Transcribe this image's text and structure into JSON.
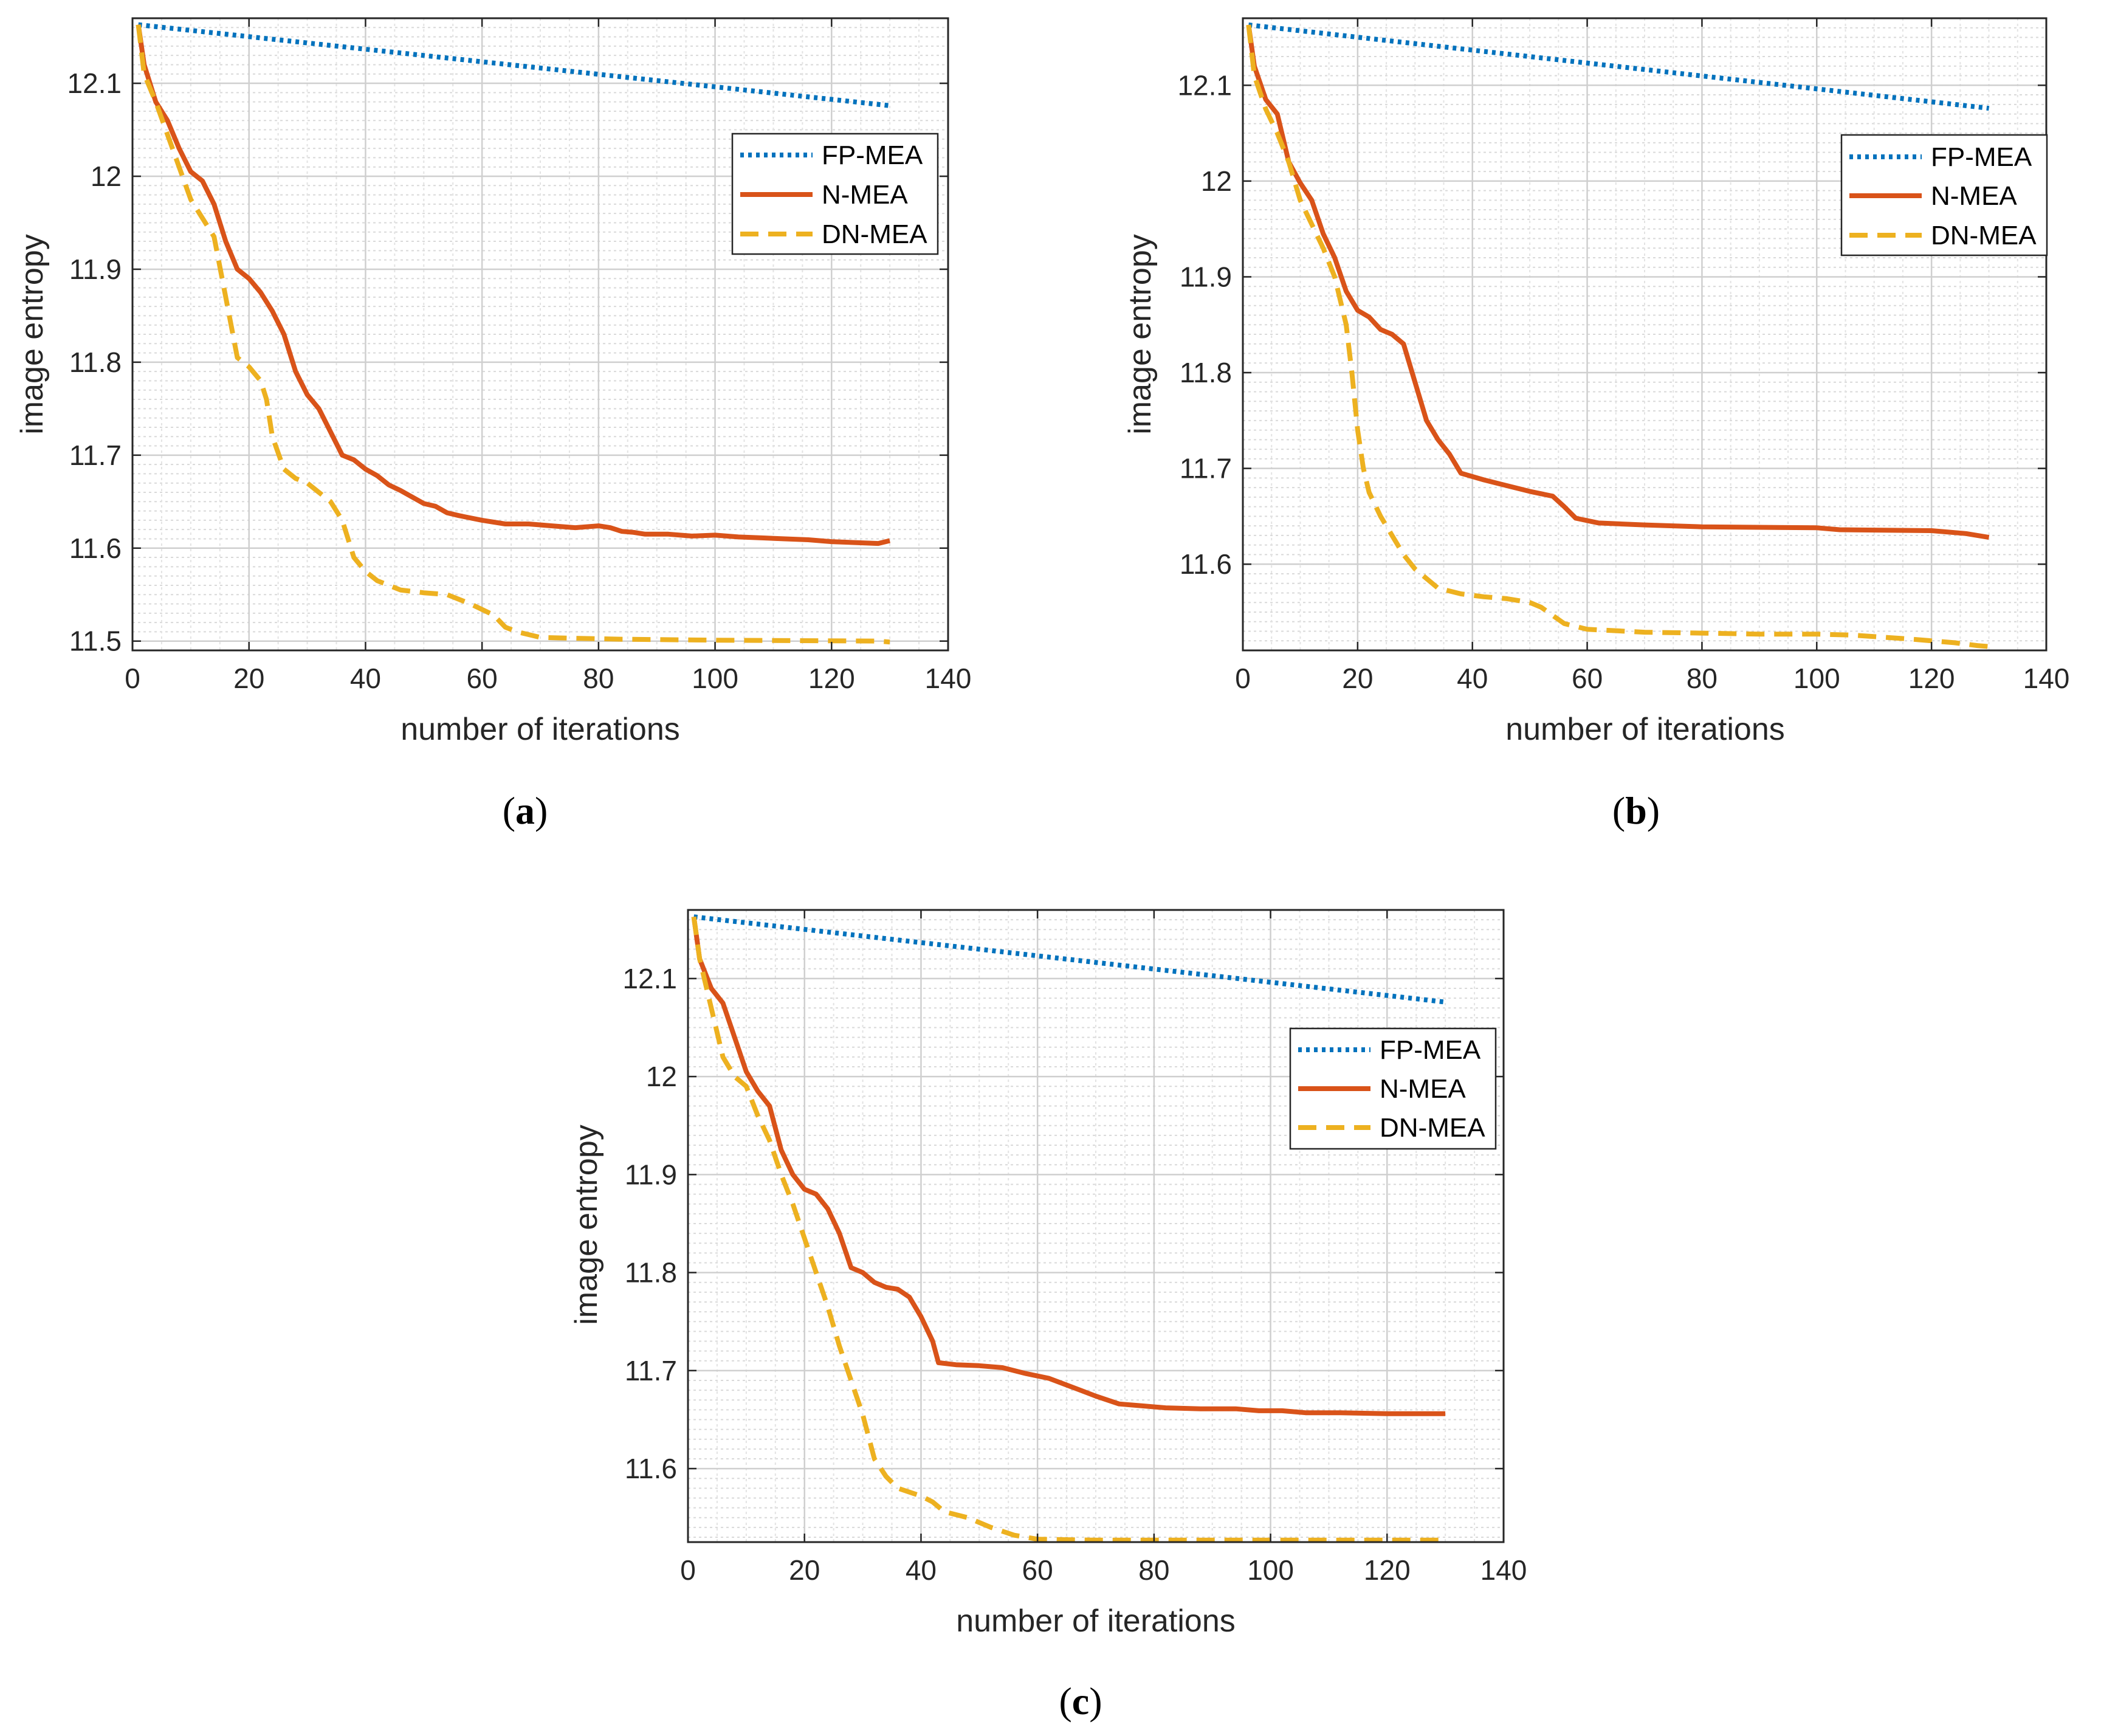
{
  "chart_data": [
    {
      "type": "line",
      "panel": "a",
      "caption_open": "(",
      "caption_letter": "a",
      "caption_close": ")",
      "xlabel": "number of iterations",
      "ylabel": "image entropy",
      "xlim": [
        0,
        140
      ],
      "ylim": [
        11.49,
        12.17
      ],
      "xticks": [
        0,
        20,
        40,
        60,
        80,
        100,
        120,
        140
      ],
      "yticks": [
        11.5,
        11.6,
        11.7,
        11.8,
        11.9,
        12,
        12.1
      ],
      "ytick_labels": [
        "11.5",
        "11.6",
        "11.7",
        "11.8",
        "11.9",
        "12",
        "12.1"
      ],
      "grid": true,
      "legend_position": "upper-right",
      "series": [
        {
          "name": "FP-MEA",
          "color": "#0072BD",
          "style": "dotted",
          "points": [
            [
              1,
              12.163
            ],
            [
              130,
              12.076
            ]
          ]
        },
        {
          "name": "N-MEA",
          "color": "#D95319",
          "style": "solid",
          "points": [
            [
              1,
              12.163
            ],
            [
              2,
              12.12
            ],
            [
              4,
              12.08
            ],
            [
              6,
              12.06
            ],
            [
              8,
              12.03
            ],
            [
              10,
              12.005
            ],
            [
              12,
              11.995
            ],
            [
              14,
              11.97
            ],
            [
              16,
              11.93
            ],
            [
              18,
              11.9
            ],
            [
              20,
              11.89
            ],
            [
              22,
              11.875
            ],
            [
              24,
              11.855
            ],
            [
              26,
              11.83
            ],
            [
              28,
              11.79
            ],
            [
              30,
              11.765
            ],
            [
              32,
              11.75
            ],
            [
              34,
              11.725
            ],
            [
              36,
              11.7
            ],
            [
              38,
              11.695
            ],
            [
              40,
              11.685
            ],
            [
              42,
              11.678
            ],
            [
              44,
              11.668
            ],
            [
              46,
              11.662
            ],
            [
              48,
              11.655
            ],
            [
              50,
              11.648
            ],
            [
              52,
              11.645
            ],
            [
              54,
              11.638
            ],
            [
              56,
              11.635
            ],
            [
              60,
              11.63
            ],
            [
              64,
              11.626
            ],
            [
              68,
              11.626
            ],
            [
              72,
              11.624
            ],
            [
              76,
              11.622
            ],
            [
              80,
              11.624
            ],
            [
              82,
              11.622
            ],
            [
              84,
              11.618
            ],
            [
              86,
              11.617
            ],
            [
              88,
              11.615
            ],
            [
              92,
              11.615
            ],
            [
              96,
              11.613
            ],
            [
              100,
              11.614
            ],
            [
              104,
              11.612
            ],
            [
              108,
              11.611
            ],
            [
              112,
              11.61
            ],
            [
              116,
              11.609
            ],
            [
              120,
              11.607
            ],
            [
              124,
              11.606
            ],
            [
              128,
              11.605
            ],
            [
              130,
              11.608
            ]
          ]
        },
        {
          "name": "DN-MEA",
          "color": "#EDB120",
          "style": "dashed",
          "points": [
            [
              1,
              12.163
            ],
            [
              2,
              12.11
            ],
            [
              4,
              12.08
            ],
            [
              6,
              12.045
            ],
            [
              8,
              12.01
            ],
            [
              10,
              11.975
            ],
            [
              12,
              11.955
            ],
            [
              14,
              11.935
            ],
            [
              16,
              11.87
            ],
            [
              18,
              11.805
            ],
            [
              20,
              11.795
            ],
            [
              22,
              11.78
            ],
            [
              23,
              11.76
            ],
            [
              24,
              11.72
            ],
            [
              26,
              11.685
            ],
            [
              28,
              11.675
            ],
            [
              30,
              11.67
            ],
            [
              32,
              11.66
            ],
            [
              34,
              11.65
            ],
            [
              36,
              11.63
            ],
            [
              38,
              11.59
            ],
            [
              40,
              11.575
            ],
            [
              42,
              11.565
            ],
            [
              44,
              11.56
            ],
            [
              46,
              11.555
            ],
            [
              50,
              11.552
            ],
            [
              54,
              11.55
            ],
            [
              58,
              11.54
            ],
            [
              62,
              11.528
            ],
            [
              64,
              11.515
            ],
            [
              66,
              11.51
            ],
            [
              70,
              11.504
            ],
            [
              76,
              11.503
            ],
            [
              84,
              11.502
            ],
            [
              100,
              11.501
            ],
            [
              128,
              11.5
            ],
            [
              130,
              11.499
            ]
          ]
        }
      ]
    },
    {
      "type": "line",
      "panel": "b",
      "caption_open": "(",
      "caption_letter": "b",
      "caption_close": ")",
      "xlabel": "number of iterations",
      "ylabel": "image entropy",
      "xlim": [
        0,
        140
      ],
      "ylim": [
        11.51,
        12.17
      ],
      "xticks": [
        0,
        20,
        40,
        60,
        80,
        100,
        120,
        140
      ],
      "yticks": [
        11.6,
        11.7,
        11.8,
        11.9,
        12,
        12.1
      ],
      "ytick_labels": [
        "11.6",
        "11.7",
        "11.8",
        "11.9",
        "12",
        "12.1"
      ],
      "grid": true,
      "legend_position": "upper-right",
      "series": [
        {
          "name": "FP-MEA",
          "color": "#0072BD",
          "style": "dotted",
          "points": [
            [
              1,
              12.163
            ],
            [
              130,
              12.076
            ]
          ]
        },
        {
          "name": "N-MEA",
          "color": "#D95319",
          "style": "solid",
          "points": [
            [
              1,
              12.163
            ],
            [
              2,
              12.12
            ],
            [
              4,
              12.085
            ],
            [
              6,
              12.07
            ],
            [
              8,
              12.02
            ],
            [
              10,
              11.998
            ],
            [
              12,
              11.98
            ],
            [
              14,
              11.945
            ],
            [
              16,
              11.92
            ],
            [
              18,
              11.885
            ],
            [
              20,
              11.865
            ],
            [
              22,
              11.858
            ],
            [
              24,
              11.845
            ],
            [
              26,
              11.84
            ],
            [
              28,
              11.83
            ],
            [
              30,
              11.79
            ],
            [
              32,
              11.75
            ],
            [
              34,
              11.73
            ],
            [
              36,
              11.715
            ],
            [
              38,
              11.695
            ],
            [
              42,
              11.688
            ],
            [
              46,
              11.682
            ],
            [
              50,
              11.676
            ],
            [
              54,
              11.671
            ],
            [
              56,
              11.66
            ],
            [
              58,
              11.648
            ],
            [
              62,
              11.643
            ],
            [
              70,
              11.641
            ],
            [
              80,
              11.639
            ],
            [
              100,
              11.638
            ],
            [
              104,
              11.636
            ],
            [
              120,
              11.635
            ],
            [
              126,
              11.632
            ],
            [
              130,
              11.628
            ]
          ]
        },
        {
          "name": "DN-MEA",
          "color": "#EDB120",
          "style": "dashed",
          "points": [
            [
              1,
              12.163
            ],
            [
              2,
              12.11
            ],
            [
              4,
              12.075
            ],
            [
              6,
              12.05
            ],
            [
              8,
              12.02
            ],
            [
              10,
              11.98
            ],
            [
              12,
              11.955
            ],
            [
              14,
              11.93
            ],
            [
              16,
              11.9
            ],
            [
              18,
              11.85
            ],
            [
              19,
              11.8
            ],
            [
              20,
              11.74
            ],
            [
              21,
              11.7
            ],
            [
              22,
              11.675
            ],
            [
              24,
              11.65
            ],
            [
              26,
              11.63
            ],
            [
              28,
              11.61
            ],
            [
              30,
              11.595
            ],
            [
              32,
              11.585
            ],
            [
              34,
              11.575
            ],
            [
              38,
              11.569
            ],
            [
              42,
              11.566
            ],
            [
              46,
              11.564
            ],
            [
              50,
              11.56
            ],
            [
              52,
              11.555
            ],
            [
              56,
              11.538
            ],
            [
              60,
              11.532
            ],
            [
              70,
              11.529
            ],
            [
              80,
              11.528
            ],
            [
              90,
              11.527
            ],
            [
              100,
              11.527
            ],
            [
              106,
              11.526
            ],
            [
              116,
              11.522
            ],
            [
              124,
              11.518
            ],
            [
              128,
              11.515
            ],
            [
              130,
              11.514
            ]
          ]
        }
      ]
    },
    {
      "type": "line",
      "panel": "c",
      "caption_open": "(",
      "caption_letter": "c",
      "caption_close": ")",
      "xlabel": "number of iterations",
      "ylabel": "image entropy",
      "xlim": [
        0,
        140
      ],
      "ylim": [
        11.525,
        12.17
      ],
      "xticks": [
        0,
        20,
        40,
        60,
        80,
        100,
        120,
        140
      ],
      "yticks": [
        11.6,
        11.7,
        11.8,
        11.9,
        12,
        12.1
      ],
      "ytick_labels": [
        "11.6",
        "11.7",
        "11.8",
        "11.9",
        "12",
        "12.1"
      ],
      "grid": true,
      "legend_position": "right",
      "series": [
        {
          "name": "FP-MEA",
          "color": "#0072BD",
          "style": "dotted",
          "points": [
            [
              1,
              12.163
            ],
            [
              130,
              12.076
            ]
          ]
        },
        {
          "name": "N-MEA",
          "color": "#D95319",
          "style": "solid",
          "points": [
            [
              1,
              12.163
            ],
            [
              2,
              12.12
            ],
            [
              4,
              12.09
            ],
            [
              6,
              12.075
            ],
            [
              8,
              12.04
            ],
            [
              10,
              12.005
            ],
            [
              12,
              11.985
            ],
            [
              14,
              11.97
            ],
            [
              16,
              11.925
            ],
            [
              18,
              11.9
            ],
            [
              20,
              11.885
            ],
            [
              22,
              11.88
            ],
            [
              24,
              11.865
            ],
            [
              26,
              11.84
            ],
            [
              28,
              11.805
            ],
            [
              30,
              11.8
            ],
            [
              32,
              11.79
            ],
            [
              34,
              11.785
            ],
            [
              36,
              11.783
            ],
            [
              38,
              11.775
            ],
            [
              40,
              11.755
            ],
            [
              42,
              11.73
            ],
            [
              43,
              11.708
            ],
            [
              46,
              11.706
            ],
            [
              50,
              11.705
            ],
            [
              54,
              11.703
            ],
            [
              58,
              11.697
            ],
            [
              62,
              11.692
            ],
            [
              66,
              11.683
            ],
            [
              70,
              11.674
            ],
            [
              74,
              11.666
            ],
            [
              78,
              11.664
            ],
            [
              82,
              11.662
            ],
            [
              88,
              11.661
            ],
            [
              94,
              11.661
            ],
            [
              98,
              11.659
            ],
            [
              102,
              11.659
            ],
            [
              106,
              11.657
            ],
            [
              112,
              11.657
            ],
            [
              120,
              11.656
            ],
            [
              130,
              11.656
            ]
          ]
        },
        {
          "name": "DN-MEA",
          "color": "#EDB120",
          "style": "dashed",
          "points": [
            [
              1,
              12.163
            ],
            [
              2,
              12.12
            ],
            [
              4,
              12.07
            ],
            [
              6,
              12.02
            ],
            [
              8,
              12.0
            ],
            [
              10,
              11.99
            ],
            [
              12,
              11.96
            ],
            [
              14,
              11.935
            ],
            [
              16,
              11.9
            ],
            [
              18,
              11.87
            ],
            [
              20,
              11.835
            ],
            [
              22,
              11.8
            ],
            [
              24,
              11.765
            ],
            [
              26,
              11.725
            ],
            [
              28,
              11.69
            ],
            [
              30,
              11.655
            ],
            [
              32,
              11.61
            ],
            [
              34,
              11.592
            ],
            [
              36,
              11.58
            ],
            [
              40,
              11.572
            ],
            [
              42,
              11.566
            ],
            [
              44,
              11.556
            ],
            [
              48,
              11.55
            ],
            [
              52,
              11.54
            ],
            [
              56,
              11.532
            ],
            [
              60,
              11.528
            ],
            [
              70,
              11.527
            ],
            [
              90,
              11.527
            ],
            [
              110,
              11.527
            ],
            [
              130,
              11.527
            ]
          ]
        }
      ]
    }
  ]
}
